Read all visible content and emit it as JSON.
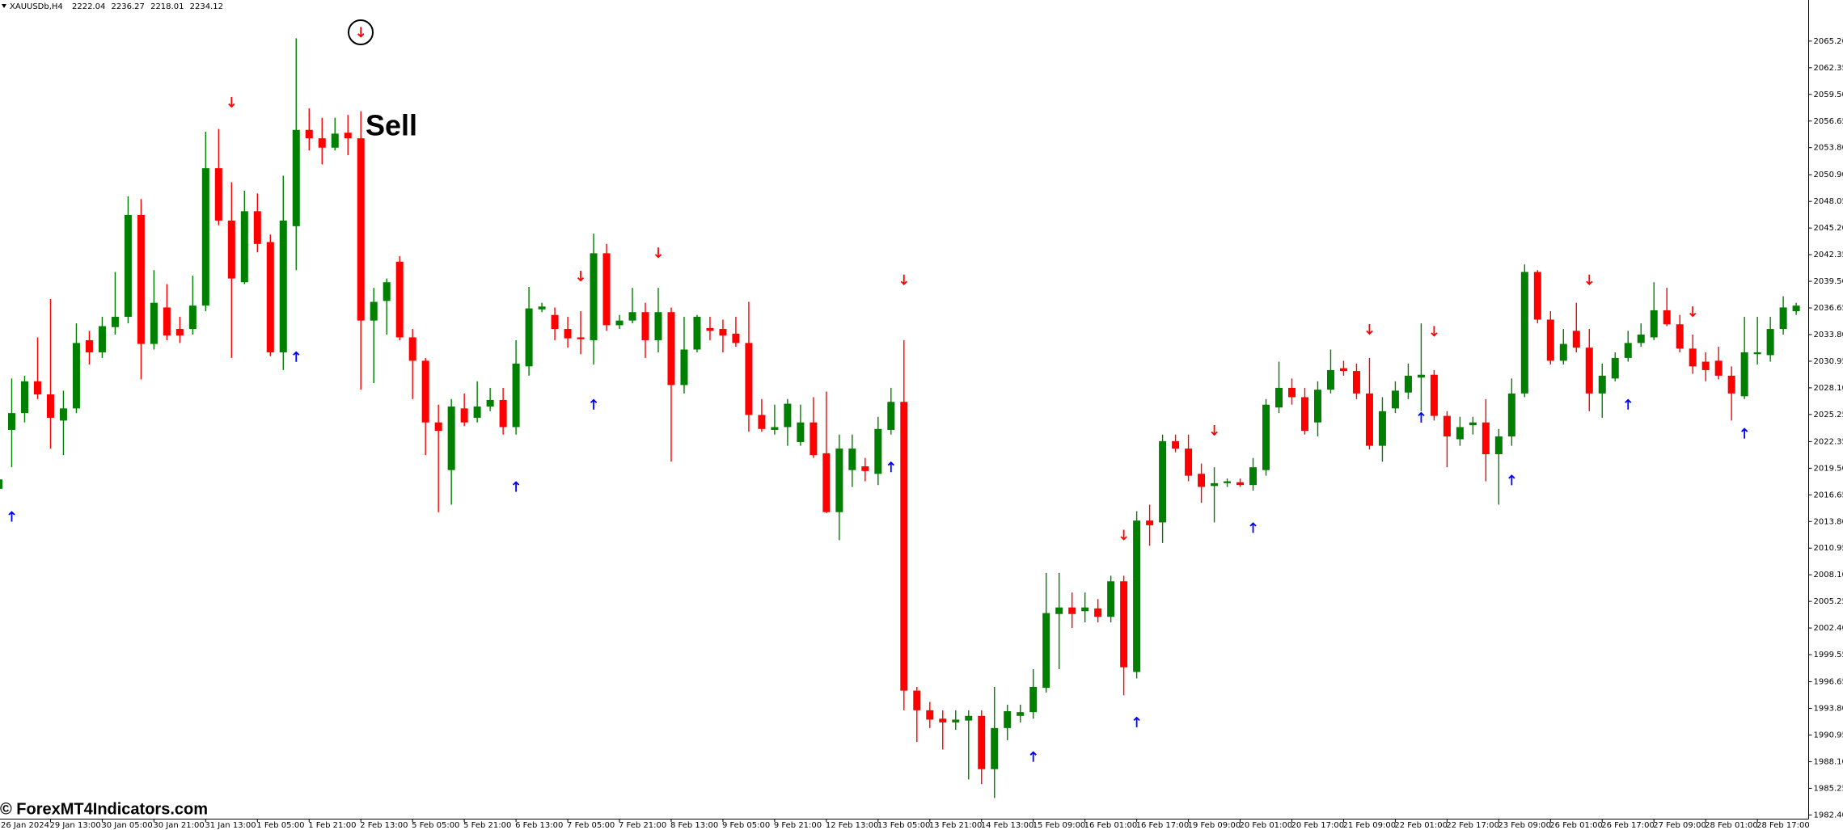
{
  "chart_data": {
    "type": "candlestick",
    "symbol": "XAUUSDb,H4",
    "header_ohlc": [
      2222.04,
      2236.27,
      2218.01,
      2234.12
    ],
    "annotation": "Sell",
    "watermark": "© ForexMT4Indicators.com",
    "up_color": "#008000",
    "down_color": "#ff0000",
    "buy_color": "#0000ff",
    "sell_color": "#ff0000",
    "ylim": [
      1982.0,
      2069.6
    ],
    "yticks": [
      {
        "value": 2065.2,
        "label": "2065.20"
      },
      2062.35,
      {
        "value": 2059.5,
        "label": "2059.50"
      },
      2056.65,
      {
        "value": 2053.8,
        "label": "2053.80"
      },
      {
        "value": 2050.9,
        "label": "2050.90"
      },
      2048.05,
      {
        "value": 2045.2,
        "label": "2045.20"
      },
      2042.35,
      {
        "value": 2039.5,
        "label": "2039.50"
      },
      2036.65,
      {
        "value": 2033.8,
        "label": "2033.80"
      },
      2030.95,
      {
        "value": 2028.1,
        "label": "2028.10"
      },
      2025.25,
      2022.35,
      {
        "value": 2019.5,
        "label": "2019.50"
      },
      2016.65,
      {
        "value": 2013.8,
        "label": "2013.80"
      },
      2010.95,
      {
        "value": 2008.1,
        "label": "2008.10"
      },
      2005.25,
      {
        "value": 2002.4,
        "label": "2002.40"
      },
      1999.55,
      1996.65,
      {
        "value": 1993.8,
        "label": "1993.80"
      },
      1990.95,
      {
        "value": 1988.1,
        "label": "1988.10"
      },
      1985.25,
      {
        "value": 1982.4,
        "label": "1982.40"
      }
    ],
    "categories": [
      "26 Jan 2024",
      null,
      null,
      null,
      "29 Jan 13:00",
      null,
      null,
      null,
      "30 Jan 05:00",
      null,
      null,
      null,
      "30 Jan 21:00",
      null,
      null,
      null,
      "31 Jan 13:00",
      null,
      null,
      null,
      "1 Feb 05:00",
      null,
      null,
      null,
      "1 Feb 21:00",
      null,
      null,
      null,
      "2 Feb 13:00",
      null,
      null,
      null,
      "5 Feb 05:00",
      null,
      null,
      null,
      "5 Feb 21:00",
      null,
      null,
      null,
      "6 Feb 13:00",
      null,
      null,
      null,
      "7 Feb 05:00",
      null,
      null,
      null,
      "7 Feb 21:00",
      null,
      null,
      null,
      "8 Feb 13:00",
      null,
      null,
      null,
      "9 Feb 05:00",
      null,
      null,
      null,
      "9 Feb 21:00",
      null,
      null,
      null,
      "12 Feb 13:00",
      null,
      null,
      null,
      "13 Feb 05:00",
      null,
      null,
      null,
      "13 Feb 21:00",
      null,
      null,
      null,
      "14 Feb 13:00",
      null,
      null,
      null,
      "15 Feb 09:00",
      null,
      null,
      null,
      "16 Feb 01:00",
      null,
      null,
      null,
      "16 Feb 17:00",
      null,
      null,
      null,
      "19 Feb 09:00",
      null,
      null,
      null,
      "20 Feb 01:00",
      null,
      null,
      null,
      "20 Feb 17:00",
      null,
      null,
      null,
      "21 Feb 09:00",
      null,
      null,
      null,
      "22 Feb 01:00",
      null,
      null,
      null,
      "22 Feb 17:00",
      null,
      null,
      null,
      "23 Feb 09:00",
      null,
      null,
      null,
      "26 Feb 01:00",
      null,
      null,
      null,
      "26 Feb 17:00",
      null,
      null,
      null,
      "27 Feb 09:00",
      null,
      null,
      null,
      "28 Feb 01:00",
      null,
      null,
      null,
      "28 Feb 17:00",
      null,
      null,
      null
    ],
    "open": [
      2017.3,
      2023.6,
      2025.4,
      2028.8,
      2027.4,
      2024.6,
      2025.9,
      2033.2,
      2031.9,
      2034.6,
      2035.7,
      2046.6,
      2032.8,
      2036.7,
      2034.4,
      2034.4,
      2036.9,
      2051.6,
      2046.0,
      2039.4,
      2047.0,
      2043.7,
      2031.9,
      2045.4,
      2055.7,
      2054.8,
      2053.8,
      2055.4,
      2054.8,
      2035.3,
      2037.4,
      2041.6,
      2033.5,
      2031.0,
      2024.4,
      2019.3,
      2025.9,
      2024.9,
      2026.1,
      2026.8,
      2023.9,
      2030.4,
      2036.5,
      2035.9,
      2034.4,
      2033.5,
      2033.2,
      2042.5,
      2034.8,
      2035.3,
      2036.2,
      2033.2,
      2036.2,
      2028.4,
      2032.2,
      2034.5,
      2034.4,
      2033.9,
      2032.9,
      2025.2,
      2023.6,
      2023.9,
      2022.3,
      2024.4,
      2021.1,
      2014.8,
      2019.3,
      2019.7,
      2018.9,
      2023.6,
      2026.6,
      1995.7,
      1993.6,
      1992.7,
      1992.3,
      1992.5,
      1993.0,
      1987.3,
      1991.7,
      1993.0,
      1993.4,
      1996.0,
      2003.9,
      2004.6,
      2004.2,
      2004.5,
      2003.6,
      2007.4,
      1997.7,
      2013.9,
      2013.7,
      2022.4,
      2021.6,
      2018.9,
      2017.6,
      2017.9,
      2018.0,
      2017.7,
      2019.3,
      2026.0,
      2028.1,
      2027.1,
      2024.4,
      2027.9,
      2030.2,
      2029.9,
      2027.5,
      2021.9,
      2025.9,
      2027.6,
      2029.2,
      2029.5,
      2025.1,
      2022.6,
      2024.1,
      2024.4,
      2021.0,
      2022.9,
      2027.5,
      2040.5,
      2035.4,
      2031.0,
      2034.2,
      2032.4,
      2027.5,
      2029.1,
      2031.3,
      2032.9,
      2033.5,
      2036.4,
      2034.9,
      2032.3,
      2030.9,
      2031.0,
      2029.4,
      2027.2,
      2031.7,
      2031.6,
      2034.4,
      2036.3
    ],
    "high": [
      2018.6,
      2029.1,
      2029.4,
      2033.5,
      2037.6,
      2027.8,
      2035.0,
      2034.2,
      2035.7,
      2040.5,
      2048.6,
      2048.3,
      2040.7,
      2039.2,
      2035.7,
      2040.1,
      2055.5,
      2055.8,
      2050.1,
      2049.2,
      2048.9,
      2044.5,
      2050.8,
      2065.5,
      2058.0,
      2057.0,
      2057.0,
      2057.3,
      2057.7,
      2038.8,
      2039.8,
      2042.2,
      2034.4,
      2031.3,
      2026.3,
      2026.9,
      2027.5,
      2028.8,
      2028.1,
      2028.1,
      2033.2,
      2038.9,
      2037.2,
      2036.7,
      2035.7,
      2036.3,
      2044.6,
      2043.5,
      2035.9,
      2038.8,
      2037.2,
      2038.8,
      2036.7,
      2035.7,
      2035.9,
      2035.7,
      2035.4,
      2035.7,
      2037.3,
      2026.9,
      2026.3,
      2026.9,
      2026.3,
      2027.1,
      2027.7,
      2023.1,
      2023.1,
      2020.6,
      2025.0,
      2028.1,
      2033.2,
      1996.1,
      1994.5,
      1993.6,
      1993.6,
      1993.6,
      1993.6,
      1996.1,
      1994.2,
      1994.2,
      1998.0,
      2008.3,
      2008.3,
      2006.2,
      2006.2,
      2005.5,
      2008.0,
      2008.0,
      2014.9,
      2015.6,
      2023.1,
      2023.1,
      2023.1,
      2020.0,
      2019.6,
      2018.4,
      2018.4,
      2020.6,
      2026.9,
      2030.9,
      2029.1,
      2028.1,
      2028.8,
      2032.2,
      2031.0,
      2030.7,
      2031.3,
      2027.1,
      2028.8,
      2030.7,
      2035.0,
      2030.0,
      2025.6,
      2025.0,
      2025.0,
      2026.9,
      2023.7,
      2029.1,
      2041.3,
      2040.7,
      2036.3,
      2034.4,
      2037.2,
      2034.4,
      2030.7,
      2031.9,
      2034.2,
      2035.0,
      2039.4,
      2038.8,
      2035.9,
      2033.8,
      2031.9,
      2032.5,
      2030.4,
      2035.7,
      2035.7,
      2035.7,
      2037.9,
      2037.2
    ],
    "low": [
      2017.0,
      2019.6,
      2024.4,
      2026.9,
      2021.6,
      2020.9,
      2025.4,
      2030.6,
      2031.3,
      2033.8,
      2035.0,
      2029.0,
      2032.2,
      2033.2,
      2032.9,
      2033.8,
      2036.3,
      2045.5,
      2031.3,
      2039.2,
      2042.6,
      2031.5,
      2030.0,
      2040.7,
      2053.5,
      2052.0,
      2053.5,
      2053.0,
      2027.9,
      2028.6,
      2033.8,
      2033.2,
      2026.9,
      2020.9,
      2014.8,
      2015.6,
      2024.0,
      2024.4,
      2025.6,
      2023.1,
      2023.1,
      2029.4,
      2036.2,
      2033.2,
      2032.4,
      2031.7,
      2030.6,
      2034.2,
      2034.4,
      2035.0,
      2031.3,
      2031.9,
      2020.2,
      2027.5,
      2031.9,
      2033.2,
      2031.9,
      2032.5,
      2023.4,
      2023.4,
      2023.1,
      2021.9,
      2021.9,
      2020.6,
      2014.7,
      2011.8,
      2017.5,
      2018.1,
      2017.7,
      2023.1,
      1993.6,
      1990.2,
      1991.7,
      1989.4,
      1991.5,
      1986.2,
      1985.7,
      1984.2,
      1990.4,
      1992.3,
      1992.7,
      1995.5,
      1998.0,
      2002.4,
      2003.0,
      2003.0,
      2003.0,
      1995.2,
      1997.0,
      2011.2,
      2011.5,
      2021.2,
      2018.1,
      2015.8,
      2013.7,
      2017.5,
      2017.5,
      2017.1,
      2018.7,
      2025.4,
      2026.3,
      2023.1,
      2022.9,
      2027.5,
      2029.4,
      2026.9,
      2021.5,
      2020.2,
      2025.4,
      2026.9,
      2025.6,
      2024.6,
      2019.6,
      2021.9,
      2023.1,
      2018.1,
      2015.6,
      2021.9,
      2027.1,
      2035.0,
      2030.6,
      2030.6,
      2031.9,
      2025.6,
      2024.9,
      2028.8,
      2030.9,
      2032.5,
      2033.2,
      2034.7,
      2031.9,
      2029.6,
      2028.8,
      2029.0,
      2024.6,
      2026.9,
      2030.6,
      2030.9,
      2033.8,
      2035.9
    ],
    "close": [
      2018.3,
      2025.4,
      2028.8,
      2027.4,
      2024.9,
      2025.9,
      2032.9,
      2031.9,
      2034.7,
      2035.7,
      2046.6,
      2032.8,
      2037.2,
      2033.7,
      2033.7,
      2036.9,
      2051.6,
      2046.0,
      2039.8,
      2047.0,
      2043.5,
      2031.9,
      2046.0,
      2055.7,
      2054.8,
      2053.8,
      2055.3,
      2054.8,
      2035.3,
      2037.3,
      2039.4,
      2033.5,
      2031.0,
      2024.4,
      2023.5,
      2026.1,
      2024.4,
      2026.1,
      2026.8,
      2023.9,
      2030.7,
      2036.6,
      2036.8,
      2034.4,
      2033.4,
      2033.3,
      2042.5,
      2034.8,
      2035.3,
      2036.2,
      2033.2,
      2036.2,
      2028.4,
      2032.2,
      2035.7,
      2034.2,
      2033.7,
      2032.9,
      2025.2,
      2023.7,
      2023.9,
      2026.4,
      2024.4,
      2020.9,
      2014.8,
      2021.6,
      2021.6,
      2019.2,
      2023.7,
      2026.6,
      1995.7,
      1993.6,
      1992.6,
      1992.3,
      1992.6,
      1993.0,
      1987.3,
      1991.7,
      1993.5,
      1993.4,
      1996.1,
      2004.0,
      2004.6,
      2003.9,
      2004.6,
      2003.6,
      2007.4,
      1998.2,
      2013.9,
      2013.4,
      2022.4,
      2021.6,
      2018.7,
      2017.5,
      2017.9,
      2018.1,
      2017.7,
      2019.6,
      2026.3,
      2028.1,
      2027.1,
      2023.5,
      2027.9,
      2030.0,
      2029.9,
      2027.5,
      2021.9,
      2025.6,
      2027.8,
      2029.4,
      2029.5,
      2025.1,
      2022.9,
      2023.9,
      2024.4,
      2021.0,
      2022.9,
      2027.5,
      2040.5,
      2035.4,
      2031.0,
      2032.8,
      2032.4,
      2027.5,
      2029.4,
      2031.3,
      2032.9,
      2033.8,
      2036.4,
      2034.9,
      2032.3,
      2030.4,
      2030.0,
      2029.4,
      2027.5,
      2031.9,
      2031.9,
      2034.4,
      2036.7,
      2036.9
    ],
    "sell_signals": [
      null,
      null,
      null,
      null,
      null,
      null,
      null,
      null,
      null,
      null,
      null,
      null,
      null,
      null,
      null,
      null,
      null,
      null,
      2058.7,
      null,
      null,
      null,
      null,
      null,
      null,
      null,
      null,
      null,
      2066.2,
      null,
      null,
      null,
      null,
      null,
      null,
      null,
      null,
      null,
      null,
      null,
      null,
      null,
      null,
      null,
      null,
      2040.1,
      null,
      null,
      null,
      null,
      null,
      2042.6,
      null,
      null,
      null,
      null,
      null,
      null,
      null,
      null,
      null,
      null,
      null,
      null,
      null,
      null,
      null,
      null,
      null,
      null,
      2039.7,
      null,
      null,
      null,
      null,
      null,
      null,
      null,
      null,
      null,
      null,
      null,
      null,
      null,
      null,
      null,
      null,
      2012.4,
      null,
      null,
      null,
      null,
      null,
      null,
      2023.6,
      null,
      null,
      null,
      null,
      null,
      null,
      null,
      null,
      null,
      null,
      null,
      2034.4,
      null,
      null,
      null,
      null,
      2034.2,
      null,
      null,
      null,
      null,
      null,
      null,
      null,
      null,
      null,
      null,
      null,
      2039.7,
      null,
      null,
      null,
      null,
      null,
      null,
      null,
      2036.3,
      null,
      null,
      null,
      null,
      null,
      null,
      null,
      null
    ],
    "buy_signals": [
      null,
      2014.3,
      null,
      null,
      null,
      null,
      null,
      null,
      null,
      null,
      null,
      null,
      null,
      null,
      null,
      null,
      null,
      null,
      null,
      null,
      null,
      null,
      null,
      2031.4,
      null,
      null,
      null,
      null,
      null,
      null,
      null,
      null,
      null,
      null,
      null,
      null,
      null,
      null,
      null,
      null,
      2017.5,
      null,
      null,
      null,
      null,
      null,
      2026.3,
      null,
      null,
      null,
      null,
      null,
      null,
      null,
      null,
      null,
      null,
      null,
      null,
      null,
      null,
      null,
      null,
      null,
      null,
      null,
      null,
      null,
      null,
      2019.6,
      null,
      null,
      null,
      null,
      null,
      null,
      null,
      null,
      null,
      null,
      1988.6,
      null,
      null,
      null,
      null,
      null,
      null,
      null,
      1992.3,
      null,
      null,
      null,
      null,
      null,
      null,
      null,
      null,
      2013.1,
      null,
      null,
      null,
      null,
      null,
      null,
      null,
      null,
      null,
      null,
      null,
      null,
      2024.9,
      null,
      null,
      null,
      null,
      null,
      null,
      2018.2,
      null,
      null,
      null,
      null,
      null,
      null,
      null,
      null,
      2026.3,
      null,
      null,
      null,
      null,
      null,
      null,
      null,
      null,
      2023.2,
      null,
      null,
      null,
      null
    ]
  }
}
